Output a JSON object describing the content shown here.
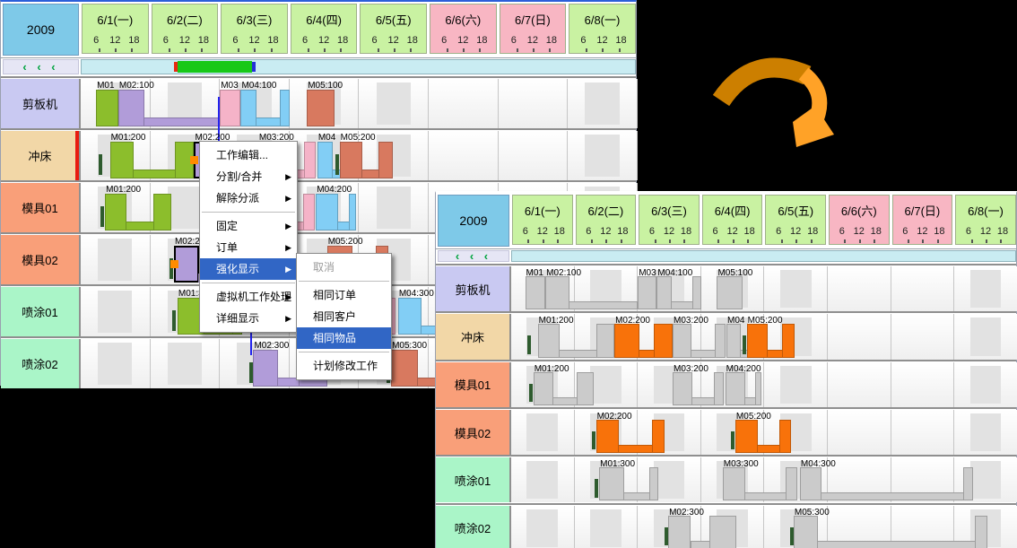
{
  "calendar": {
    "year": "2009",
    "nav": "‹ ‹ ‹",
    "ticks": [
      "6",
      "12",
      "18"
    ],
    "days": [
      {
        "label": "6/1(一)",
        "weekend": false
      },
      {
        "label": "6/2(二)",
        "weekend": false
      },
      {
        "label": "6/3(三)",
        "weekend": false
      },
      {
        "label": "6/4(四)",
        "weekend": false
      },
      {
        "label": "6/5(五)",
        "weekend": false
      },
      {
        "label": "6/6(六)",
        "weekend": true
      },
      {
        "label": "6/7(日)",
        "weekend": true
      },
      {
        "label": "6/8(一)",
        "weekend": false
      }
    ]
  },
  "resources": [
    {
      "name": "剪板机",
      "color": "#c9c9f2"
    },
    {
      "name": "冲床",
      "color": "#f2d7a7"
    },
    {
      "name": "模具01",
      "color": "#f99f79"
    },
    {
      "name": "模具02",
      "color": "#f99f79"
    },
    {
      "name": "喷涂01",
      "color": "#aaf5c8"
    },
    {
      "name": "喷涂02",
      "color": "#aaf5c8"
    }
  ],
  "selected_resource_index": 1,
  "chart_data": {
    "type": "gantt",
    "unit": "days from 6/1 00:00",
    "bars": [
      {
        "row": 0,
        "label": "M01",
        "color": "green",
        "block": [
          0.22,
          0.54
        ]
      },
      {
        "row": 0,
        "label": "M02:100",
        "color": "purple",
        "block": [
          0.54,
          0.92
        ],
        "end": 2.0
      },
      {
        "row": 0,
        "label": "M03",
        "color": "pink",
        "block": [
          2.0,
          2.3
        ]
      },
      {
        "row": 0,
        "label": "M04:100",
        "color": "cyan",
        "block": [
          2.3,
          2.53
        ],
        "end": 3.0,
        "rb": 0.14
      },
      {
        "row": 0,
        "label": "M05:100",
        "color": "salmon",
        "block": [
          3.25,
          3.65
        ]
      },
      {
        "row": 1,
        "label": "M01:200",
        "color": "green",
        "mark": 0.26,
        "block": [
          0.42,
          0.76
        ],
        "end": 1.63,
        "rb": 0.28
      },
      {
        "row": 1,
        "label": "M02:200",
        "color": "purple",
        "selected": true,
        "highlight": true,
        "block": [
          1.63,
          2.03
        ],
        "end": 2.55,
        "rb": 0.3
      },
      {
        "row": 1,
        "label": "M03:200",
        "color": "pink",
        "block": [
          2.55,
          2.85
        ],
        "end": 3.38,
        "rb": 0.17
      },
      {
        "row": 1,
        "label": "M04",
        "color": "cyan",
        "block": [
          3.4,
          3.62
        ],
        "end": 3.74
      },
      {
        "row": 1,
        "label": "M05:200",
        "color": "salmon",
        "highlight": true,
        "mark": 3.66,
        "block": [
          3.72,
          4.05
        ],
        "end": 4.48,
        "rb": 0.2
      },
      {
        "row": 2,
        "label": "M01:200",
        "color": "green",
        "mark": 0.28,
        "block": [
          0.35,
          0.66
        ],
        "end": 1.3,
        "rb": 0.26
      },
      {
        "row": 2,
        "label": "M03:200",
        "color": "pink",
        "block": [
          2.55,
          2.86
        ],
        "end": 3.36,
        "rb": 0.16
      },
      {
        "row": 2,
        "label": "M04:200",
        "color": "cyan",
        "block": [
          3.38,
          3.7
        ],
        "end": 3.95,
        "rb": 0.1
      },
      {
        "row": 3,
        "label": "M02:200",
        "color": "purple",
        "selected": true,
        "highlight": true,
        "mark": 1.27,
        "block": [
          1.34,
          1.7
        ],
        "end": 2.42,
        "rb": 0.2
      },
      {
        "row": 3,
        "label": "M05:200",
        "color": "salmon",
        "highlight": true,
        "mark": 3.47,
        "block": [
          3.54,
          3.9
        ],
        "end": 4.42,
        "rb": 0.18
      },
      {
        "row": 4,
        "label": "M01:300",
        "color": "green",
        "mark": 1.32,
        "block": [
          1.39,
          1.78
        ],
        "end": 2.32,
        "rb": 0.14
      },
      {
        "row": 4,
        "label": "M03:300",
        "color": "pink",
        "block": [
          3.34,
          3.7
        ],
        "end": 4.52,
        "rb": 0.18
      },
      {
        "row": 4,
        "label": "M04:300",
        "color": "cyan",
        "block": [
          4.56,
          4.9
        ],
        "end": 7.3,
        "rb": 0.16
      },
      {
        "row": 5,
        "label": "M02:300",
        "color": "purple",
        "mark": 2.42,
        "block": [
          2.48,
          2.84
        ],
        "end": 3.55,
        "rb": 0.42
      },
      {
        "row": 5,
        "label": "M05:300",
        "color": "salmon",
        "mark": 4.4,
        "block": [
          4.46,
          4.84
        ],
        "end": 7.52,
        "rb": 0.2
      }
    ],
    "links": [
      {
        "day": 1.97,
        "from_row": 0,
        "to_row": 1
      },
      {
        "day": 2.44,
        "from_row": 4,
        "to_row": 5
      }
    ]
  },
  "colors": {
    "green": "#8cbe2c",
    "purple": "#b19cd9",
    "pink": "#f5b3c8",
    "cyan": "#82cef5",
    "salmon": "#d8795f",
    "gray_bar": "#cbcbcb",
    "highlight_orange": "#f8720a",
    "op_mark": "#2e5b2e",
    "weekday_header": "#c9f2a2",
    "weekend_header": "#f8b6c3",
    "year_cell": "#7ec9e8",
    "scroll_track": "#c9ecf2",
    "scroll_thumb": "#17c817",
    "menu_highlight": "#3166c5",
    "resource_selected_indicator": "#e81b10",
    "link_line": "#2222ee",
    "selection_handle": "#ff8c00"
  },
  "context_menu": {
    "items": [
      {
        "label": "工作编辑...",
        "arrow": false
      },
      {
        "label": "分割/合并",
        "arrow": true
      },
      {
        "label": "解除分派",
        "arrow": true
      },
      {
        "sep": true
      },
      {
        "label": "固定",
        "arrow": true
      },
      {
        "label": "订单",
        "arrow": true
      },
      {
        "label": "强化显示",
        "arrow": true,
        "highlighted": true
      },
      {
        "sep": true
      },
      {
        "label": "虚拟机工作处理",
        "arrow": true
      },
      {
        "label": "详细显示",
        "arrow": true
      }
    ]
  },
  "submenu": {
    "items": [
      {
        "label": "取消",
        "disabled": true
      },
      {
        "sep": true
      },
      {
        "label": "相同订单"
      },
      {
        "label": "相同客户"
      },
      {
        "label": "相同物品",
        "highlighted": true
      },
      {
        "sep": true
      },
      {
        "label": "计划修改工作"
      }
    ]
  },
  "arrow_icon": {
    "meaning": "before-to-after transition",
    "color_dark": "#cc7f00",
    "color_light": "#ffa227"
  }
}
